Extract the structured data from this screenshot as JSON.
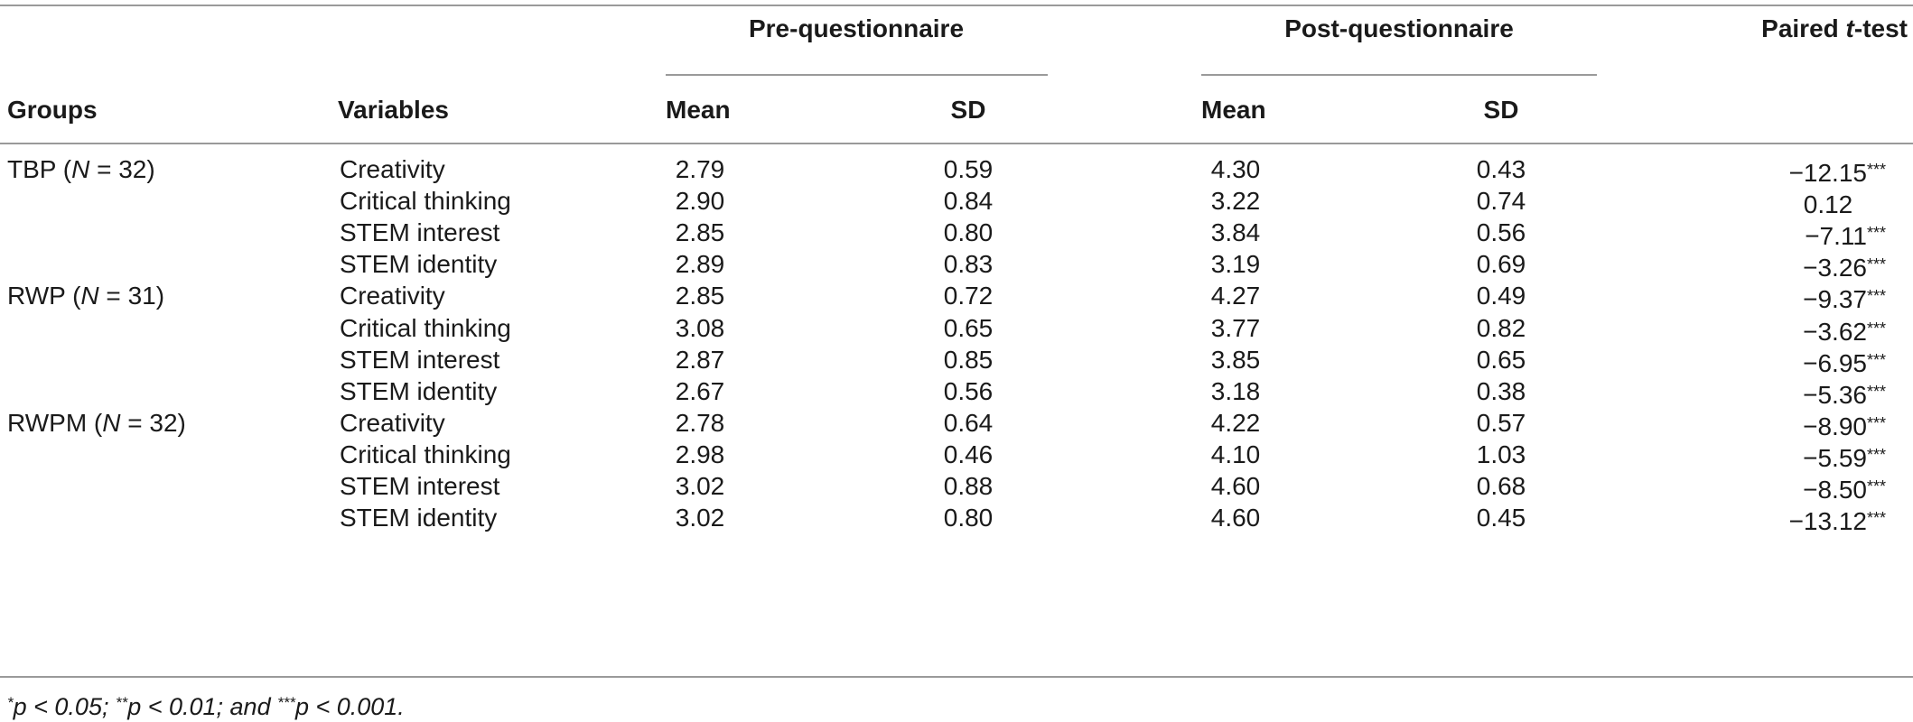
{
  "table": {
    "header": {
      "groups": "Groups",
      "variables": "Variables",
      "pre_group": "Pre-questionnaire",
      "post_group": "Post-questionnaire",
      "paired_prefix": "Paired ",
      "paired_t": "t",
      "paired_suffix": "-test",
      "mean": "Mean",
      "sd": "SD"
    },
    "rows": [
      {
        "group_prefix": "TBP (",
        "group_n": "N",
        "group_suffix": " = 32)",
        "variable": "Creativity",
        "pre_mean": "2.79",
        "pre_sd": "0.59",
        "post_mean": "4.30",
        "post_sd": "0.43",
        "t": "−12.15",
        "sig": "***"
      },
      {
        "group_prefix": "",
        "group_n": "",
        "group_suffix": "",
        "variable": "Critical thinking",
        "pre_mean": "2.90",
        "pre_sd": "0.84",
        "post_mean": "3.22",
        "post_sd": "0.74",
        "t": "0.12",
        "sig": ""
      },
      {
        "group_prefix": "",
        "group_n": "",
        "group_suffix": "",
        "variable": "STEM interest",
        "pre_mean": "2.85",
        "pre_sd": "0.80",
        "post_mean": "3.84",
        "post_sd": "0.56",
        "t": "−7.11",
        "sig": "***"
      },
      {
        "group_prefix": "",
        "group_n": "",
        "group_suffix": "",
        "variable": "STEM identity",
        "pre_mean": "2.89",
        "pre_sd": "0.83",
        "post_mean": "3.19",
        "post_sd": "0.69",
        "t": "−3.26",
        "sig": "***"
      },
      {
        "group_prefix": "RWP (",
        "group_n": "N",
        "group_suffix": " = 31)",
        "variable": "Creativity",
        "pre_mean": "2.85",
        "pre_sd": "0.72",
        "post_mean": "4.27",
        "post_sd": "0.49",
        "t": "−9.37",
        "sig": "***"
      },
      {
        "group_prefix": "",
        "group_n": "",
        "group_suffix": "",
        "variable": "Critical thinking",
        "pre_mean": "3.08",
        "pre_sd": "0.65",
        "post_mean": "3.77",
        "post_sd": "0.82",
        "t": "−3.62",
        "sig": "***"
      },
      {
        "group_prefix": "",
        "group_n": "",
        "group_suffix": "",
        "variable": "STEM interest",
        "pre_mean": "2.87",
        "pre_sd": "0.85",
        "post_mean": "3.85",
        "post_sd": "0.65",
        "t": "−6.95",
        "sig": "***"
      },
      {
        "group_prefix": "",
        "group_n": "",
        "group_suffix": "",
        "variable": "STEM identity",
        "pre_mean": "2.67",
        "pre_sd": "0.56",
        "post_mean": "3.18",
        "post_sd": "0.38",
        "t": "−5.36",
        "sig": "***"
      },
      {
        "group_prefix": "RWPM (",
        "group_n": "N",
        "group_suffix": " = 32)",
        "variable": "Creativity",
        "pre_mean": "2.78",
        "pre_sd": "0.64",
        "post_mean": "4.22",
        "post_sd": "0.57",
        "t": "−8.90",
        "sig": "***"
      },
      {
        "group_prefix": "",
        "group_n": "",
        "group_suffix": "",
        "variable": "Critical thinking",
        "pre_mean": "2.98",
        "pre_sd": "0.46",
        "post_mean": "4.10",
        "post_sd": "1.03",
        "t": "−5.59",
        "sig": "***"
      },
      {
        "group_prefix": "",
        "group_n": "",
        "group_suffix": "",
        "variable": "STEM interest",
        "pre_mean": "3.02",
        "pre_sd": "0.88",
        "post_mean": "4.60",
        "post_sd": "0.68",
        "t": "−8.50",
        "sig": "***"
      },
      {
        "group_prefix": "",
        "group_n": "",
        "group_suffix": "",
        "variable": "STEM identity",
        "pre_mean": "3.02",
        "pre_sd": "0.80",
        "post_mean": "4.60",
        "post_sd": "0.45",
        "t": "−13.12",
        "sig": "***"
      }
    ]
  },
  "footnote": {
    "s1": "*",
    "t1": "p < 0.05; ",
    "s2": "**",
    "t2": "p < 0.01; and ",
    "s3": "***",
    "t3": "p < 0.001."
  }
}
